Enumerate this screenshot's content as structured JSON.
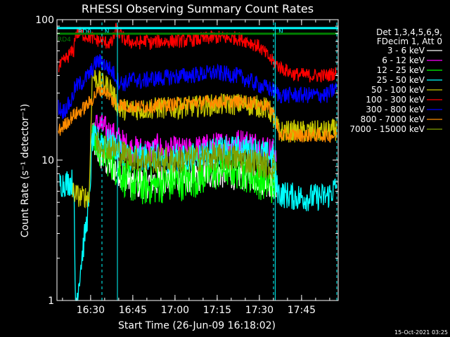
{
  "chart_data": {
    "type": "line",
    "title": "RHESSI Observing Summary Count Rates",
    "xlabel": "Start Time (26-Jun-09 16:18:02)",
    "ylabel": "Count Rate (s⁻¹ detector⁻¹)",
    "footer": "15-Oct-2021 03:25",
    "y_scale": "log",
    "ylim": [
      1,
      100
    ],
    "xlim_minutes_after_start": [
      0,
      100
    ],
    "x_ticks": [
      {
        "label": "16:30",
        "minute": 11.97
      },
      {
        "label": "16:45",
        "minute": 26.97
      },
      {
        "label": "17:00",
        "minute": 41.97
      },
      {
        "label": "17:15",
        "minute": 56.97
      },
      {
        "label": "17:30",
        "minute": 71.97
      },
      {
        "label": "17:45",
        "minute": 86.97
      }
    ],
    "y_ticks": [
      {
        "label": "1",
        "value": 1
      },
      {
        "label": "10",
        "value": 10
      },
      {
        "label": "100",
        "value": 100
      }
    ],
    "legend": {
      "placement": "right",
      "header": [
        "Det 1,3,4,5,6,9,",
        "FDecim 1, Att 0"
      ],
      "entries": [
        {
          "label": "3 - 6 keV",
          "color": "#ffffff"
        },
        {
          "label": "6 - 12 keV",
          "color": "#ff00ff"
        },
        {
          "label": "12 - 25 keV",
          "color": "#00ff00"
        },
        {
          "label": "25 - 50 keV",
          "color": "#00ffff"
        },
        {
          "label": "50 - 100 keV",
          "color": "#c8c800"
        },
        {
          "label": "100 - 300 keV",
          "color": "#ff0000"
        },
        {
          "label": "300 - 800 keV",
          "color": "#0000ff"
        },
        {
          "label": "800 - 7000 keV",
          "color": "#ff8c00"
        },
        {
          "label": "7000 - 15000 keV",
          "color": "#80a000"
        }
      ]
    },
    "flags": [
      {
        "label": "RD0",
        "color": "#00ffff",
        "from_minute": 0,
        "to_minute": 78.5,
        "level": 1
      },
      {
        "label": "N",
        "color": "#00ffff",
        "from_minute": 16.7,
        "to_minute": 21.5,
        "level": 1
      },
      {
        "label": "N",
        "color": "#00ffff",
        "from_minute": 78.5,
        "to_minute": 100,
        "level": 1
      },
      {
        "label": "RD4",
        "color": "#008000",
        "from_minute": 0,
        "to_minute": 100,
        "level": 2
      }
    ],
    "dashed_markers_minutes": [
      16.0,
      77.0,
      99.5
    ],
    "solid_markers_minutes": [
      0,
      21.5,
      77.6
    ],
    "series": [
      {
        "name": "3 - 6 keV",
        "color": "#ffffff",
        "noise": 0.12,
        "points": [
          [
            12.5,
            15
          ],
          [
            14,
            12
          ],
          [
            17,
            10
          ],
          [
            20,
            9
          ],
          [
            24,
            8
          ],
          [
            27,
            6.8
          ],
          [
            32,
            7.0
          ],
          [
            38,
            7.3
          ],
          [
            44,
            7.5
          ],
          [
            50,
            7.8
          ],
          [
            56,
            8.2
          ],
          [
            60,
            8.2
          ],
          [
            64,
            8.0
          ],
          [
            68,
            8.0
          ],
          [
            72,
            7.5
          ],
          [
            76,
            7.0
          ],
          [
            78,
            6.8
          ]
        ]
      },
      {
        "name": "6 - 12 keV",
        "color": "#ff00ff",
        "noise": 0.1,
        "points": [
          [
            12.5,
            17
          ],
          [
            15,
            18
          ],
          [
            18,
            16
          ],
          [
            22,
            14
          ],
          [
            26,
            12
          ],
          [
            30,
            11.8
          ],
          [
            34,
            11.5
          ],
          [
            36,
            12.5
          ],
          [
            38,
            11.2
          ],
          [
            42,
            11.8
          ],
          [
            46,
            11.5
          ],
          [
            50,
            12.0
          ],
          [
            55,
            12.5
          ],
          [
            60,
            13.0
          ],
          [
            66,
            13.5
          ],
          [
            70,
            13.0
          ],
          [
            74,
            12.2
          ],
          [
            77,
            11.5
          ],
          [
            78,
            12.0
          ]
        ]
      },
      {
        "name": "12 - 25 keV",
        "color": "#00ff00",
        "noise": 0.14,
        "points": [
          [
            12.5,
            14
          ],
          [
            14,
            13
          ],
          [
            17,
            11
          ],
          [
            20,
            9.5
          ],
          [
            24,
            7.5
          ],
          [
            28,
            6.5
          ],
          [
            32,
            6.5
          ],
          [
            38,
            6.8
          ],
          [
            44,
            7.0
          ],
          [
            50,
            7.5
          ],
          [
            56,
            8.2
          ],
          [
            60,
            8.8
          ],
          [
            64,
            8.5
          ],
          [
            68,
            8.0
          ],
          [
            72,
            7.2
          ],
          [
            76,
            6.7
          ],
          [
            78,
            6.6
          ]
        ]
      },
      {
        "name": "25 - 50 keV",
        "color": "#00ffff",
        "noise": 0.1,
        "points": [
          [
            1,
            6.8
          ],
          [
            5,
            7.0
          ],
          [
            6,
            6.9
          ],
          [
            6.5,
            1
          ],
          [
            7,
            1
          ],
          [
            8.5,
            1.8
          ],
          [
            10,
            3
          ],
          [
            11.5,
            5
          ],
          [
            12.5,
            14
          ],
          [
            15,
            14
          ],
          [
            18,
            13.5
          ],
          [
            22,
            12
          ],
          [
            26,
            10.5
          ],
          [
            30,
            10.5
          ],
          [
            34,
            10.8
          ],
          [
            38,
            10.0
          ],
          [
            42,
            10.5
          ],
          [
            46,
            10.2
          ],
          [
            50,
            10.8
          ],
          [
            55,
            11.5
          ],
          [
            60,
            11.8
          ],
          [
            66,
            12.0
          ],
          [
            70,
            11.8
          ],
          [
            74,
            11.0
          ],
          [
            77,
            10.5
          ],
          [
            78,
            6.6
          ],
          [
            79,
            5.8
          ],
          [
            84,
            5.5
          ],
          [
            90,
            5.4
          ],
          [
            96,
            5.5
          ],
          [
            99.5,
            6.5
          ]
        ]
      },
      {
        "name": "50 - 100 keV",
        "color": "#c8c800",
        "noise": 0.08,
        "points": [
          [
            5.5,
            6
          ],
          [
            8,
            5.5
          ],
          [
            11,
            5.5
          ],
          [
            11.5,
            5.5
          ],
          [
            12.5,
            40
          ],
          [
            14,
            38
          ],
          [
            16,
            35
          ],
          [
            19,
            33
          ],
          [
            22,
            23
          ],
          [
            26,
            23
          ],
          [
            30,
            23
          ],
          [
            36,
            23.5
          ],
          [
            42,
            23.5
          ],
          [
            48,
            24
          ],
          [
            54,
            24.5
          ],
          [
            60,
            25
          ],
          [
            66,
            25
          ],
          [
            70,
            24.5
          ],
          [
            74,
            23.5
          ],
          [
            76,
            22.0
          ],
          [
            77,
            19.5
          ],
          [
            79,
            16
          ],
          [
            84,
            16
          ],
          [
            90,
            16
          ],
          [
            96,
            16
          ],
          [
            99.5,
            16.5
          ]
        ]
      },
      {
        "name": "100 - 300 keV",
        "color": "#ff0000",
        "noise": 0.05,
        "points": [
          [
            0.5,
            45
          ],
          [
            3,
            52
          ],
          [
            5,
            58
          ],
          [
            6,
            60
          ],
          [
            6.5,
            80
          ],
          [
            8,
            80
          ],
          [
            11,
            76
          ],
          [
            14,
            72
          ],
          [
            17,
            69
          ],
          [
            19.5,
            68
          ],
          [
            21,
            85
          ],
          [
            22,
            80
          ],
          [
            24,
            72
          ],
          [
            26,
            70
          ],
          [
            28,
            68
          ],
          [
            30,
            69
          ],
          [
            32,
            72
          ],
          [
            33,
            68
          ],
          [
            36,
            70
          ],
          [
            40,
            70
          ],
          [
            46,
            71
          ],
          [
            52,
            73
          ],
          [
            56,
            75
          ],
          [
            60,
            74
          ],
          [
            64,
            74
          ],
          [
            68,
            70
          ],
          [
            72,
            64
          ],
          [
            76,
            52
          ],
          [
            78,
            48
          ],
          [
            80,
            45
          ],
          [
            84,
            41
          ],
          [
            90,
            40
          ],
          [
            96,
            40
          ],
          [
            99.5,
            42
          ]
        ]
      },
      {
        "name": "300 - 800 keV",
        "color": "#0000ff",
        "noise": 0.06,
        "points": [
          [
            0.5,
            24
          ],
          [
            2,
            22
          ],
          [
            5,
            26
          ],
          [
            6.5,
            33
          ],
          [
            9,
            36
          ],
          [
            12,
            42
          ],
          [
            14,
            50
          ],
          [
            16,
            50
          ],
          [
            18,
            46
          ],
          [
            20,
            42
          ],
          [
            22,
            36
          ],
          [
            24,
            35
          ],
          [
            26,
            37
          ],
          [
            28,
            38
          ],
          [
            30,
            36
          ],
          [
            33,
            38
          ],
          [
            36,
            38
          ],
          [
            40,
            39
          ],
          [
            46,
            40
          ],
          [
            52,
            41
          ],
          [
            56,
            42
          ],
          [
            60,
            41
          ],
          [
            64,
            40
          ],
          [
            68,
            37
          ],
          [
            72,
            34
          ],
          [
            76,
            32
          ],
          [
            77.5,
            31
          ],
          [
            79,
            29
          ],
          [
            84,
            29
          ],
          [
            90,
            29
          ],
          [
            96,
            29
          ],
          [
            99.5,
            33
          ]
        ]
      },
      {
        "name": "800 - 7000 keV",
        "color": "#ff8c00",
        "noise": 0.05,
        "points": [
          [
            0.5,
            16
          ],
          [
            3,
            18
          ],
          [
            5,
            20
          ],
          [
            6,
            21
          ],
          [
            8,
            22
          ],
          [
            10,
            24
          ],
          [
            12,
            26
          ],
          [
            14,
            30
          ],
          [
            16,
            32
          ],
          [
            18,
            30
          ],
          [
            20,
            26
          ],
          [
            22,
            25
          ],
          [
            26,
            24
          ],
          [
            30,
            24
          ],
          [
            36,
            24.5
          ],
          [
            42,
            25
          ],
          [
            48,
            25.5
          ],
          [
            54,
            26
          ],
          [
            60,
            26
          ],
          [
            66,
            26
          ],
          [
            70,
            25.5
          ],
          [
            74,
            24.5
          ],
          [
            77,
            22
          ],
          [
            79,
            15
          ],
          [
            84,
            15
          ],
          [
            90,
            15
          ],
          [
            96,
            15
          ],
          [
            99.5,
            15
          ]
        ]
      },
      {
        "name": "7000 - 15000 keV",
        "color": "#80a000",
        "noise": 0.1,
        "points": [
          [
            14,
            13.5
          ],
          [
            18,
            12.5
          ],
          [
            22,
            11.5
          ],
          [
            26,
            10.5
          ],
          [
            30,
            10.2
          ],
          [
            36,
            10.0
          ],
          [
            42,
            10.0
          ],
          [
            48,
            10.2
          ],
          [
            54,
            10.5
          ],
          [
            60,
            10.5
          ],
          [
            66,
            10.2
          ],
          [
            72,
            9.5
          ],
          [
            76,
            9.0
          ],
          [
            78,
            9.0
          ]
        ]
      }
    ]
  }
}
